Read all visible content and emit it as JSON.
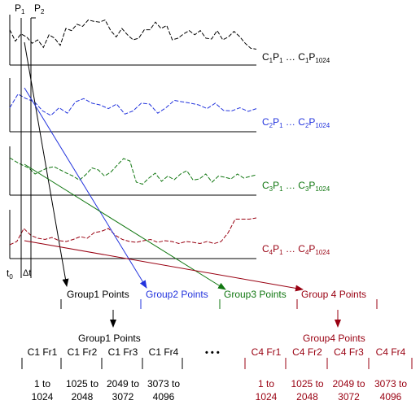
{
  "markers": {
    "p1": "P",
    "p1_sub": "1",
    "p2": "P",
    "p2_sub": "2",
    "t0": "t",
    "t0_sub": "0",
    "dt": "Δt"
  },
  "channels": [
    {
      "id": "c1",
      "color": "#000000",
      "prefix": "C",
      "ch": "1",
      "p": "P",
      "first": "1",
      "sep": " … ",
      "last": "1024",
      "values": [
        0.72,
        0.45,
        0.62,
        0.55,
        0.4,
        0.48,
        0.3,
        0.6,
        0.52,
        0.35,
        0.75,
        0.7,
        0.85,
        0.8,
        0.95,
        0.92,
        0.9,
        0.95,
        0.7,
        0.55,
        0.75,
        0.6,
        0.48,
        0.52,
        0.72,
        0.72,
        0.9,
        0.75,
        0.82,
        0.48,
        0.52,
        0.62,
        0.7,
        0.6,
        0.7,
        0.52,
        0.5,
        0.7,
        0.48,
        0.55,
        0.68,
        0.56,
        0.4,
        0.28,
        0.26
      ]
    },
    {
      "id": "c2",
      "color": "#2233dd",
      "prefix": "C",
      "ch": "2",
      "p": "P",
      "first": "1",
      "sep": " … ",
      "last": "1024",
      "values": [
        0.42,
        0.72,
        0.62,
        0.55,
        0.35,
        0.25,
        0.42,
        0.3,
        0.55,
        0.62,
        0.52,
        0.48,
        0.4,
        0.5,
        0.28,
        0.35,
        0.52,
        0.5,
        0.3,
        0.42,
        0.58,
        0.55,
        0.52,
        0.48,
        0.4,
        0.52,
        0.36,
        0.35,
        0.42,
        0.34,
        0.4
      ]
    },
    {
      "id": "c3",
      "color": "#117711",
      "prefix": "C",
      "ch": "3",
      "p": "P",
      "first": "1",
      "sep": " … ",
      "last": "1024",
      "values": [
        0.8,
        0.7,
        0.62,
        0.55,
        0.4,
        0.48,
        0.55,
        0.58,
        0.5,
        0.42,
        0.35,
        0.25,
        0.38,
        0.55,
        0.5,
        0.35,
        0.45,
        0.62,
        0.78,
        0.72,
        0.2,
        0.15,
        0.3,
        0.42,
        0.22,
        0.35,
        0.26,
        0.4,
        0.48,
        0.25,
        0.28,
        0.4,
        0.2,
        0.35,
        0.32,
        0.28,
        0.4,
        0.3,
        0.34,
        0.38
      ]
    },
    {
      "id": "c4",
      "color": "#990011",
      "prefix": "C",
      "ch": "4",
      "p": "P",
      "first": "1",
      "sep": " … ",
      "last": "1024",
      "values": [
        0.22,
        0.3,
        0.62,
        0.45,
        0.38,
        0.35,
        0.4,
        0.32,
        0.3,
        0.35,
        0.42,
        0.38,
        0.52,
        0.55,
        0.62,
        0.45,
        0.35,
        0.3,
        0.28,
        0.32,
        0.35,
        0.28,
        0.32,
        0.3,
        0.25,
        0.3,
        0.28,
        0.25,
        0.3,
        0.25,
        0.3,
        0.52,
        0.85,
        0.85,
        0.85,
        0.88
      ]
    }
  ],
  "groups": [
    {
      "label": "Group1 Points",
      "color": "#000000"
    },
    {
      "label": "Group2 Points",
      "color": "#2233dd"
    },
    {
      "label": "Group3 Points",
      "color": "#117711"
    },
    {
      "label": "Group 4 Points",
      "color": "#990011"
    }
  ],
  "group1": {
    "title": "Group1 Points",
    "frames": [
      "C1 Fr1",
      "C1 Fr2",
      "C1 Fr3",
      "C1 Fr4"
    ],
    "ranges": [
      [
        "1 to",
        "1024"
      ],
      [
        "1025 to",
        "2048"
      ],
      [
        "2049 to",
        "3072"
      ],
      [
        "3073 to",
        "4096"
      ]
    ]
  },
  "ellipsis": "• • •",
  "group4": {
    "title": "Group4 Points",
    "frames": [
      "C4 Fr1",
      "C4 Fr2",
      "C4 Fr3",
      "C4 Fr4"
    ],
    "ranges": [
      [
        "1 to",
        "1024"
      ],
      [
        "1025 to",
        "2048"
      ],
      [
        "2049 to",
        "3072"
      ],
      [
        "3073 to",
        "4096"
      ]
    ]
  }
}
